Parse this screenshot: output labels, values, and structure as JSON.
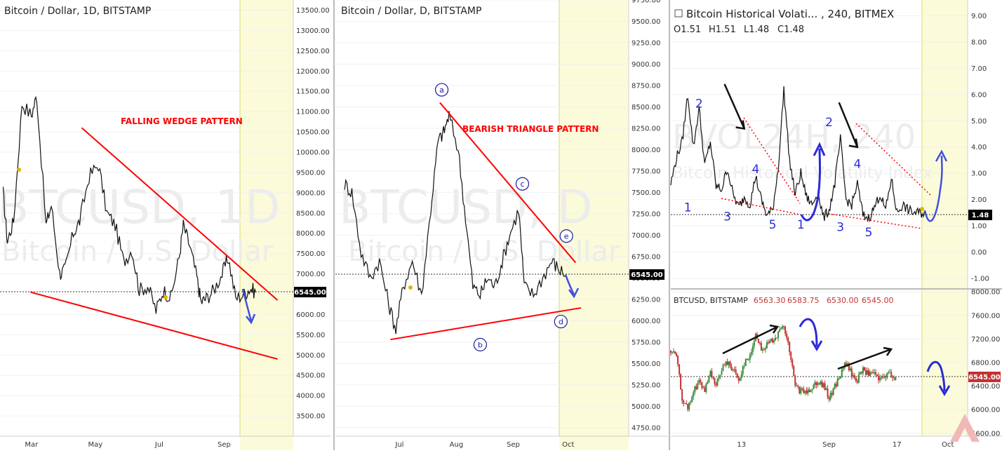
{
  "colors": {
    "accent_red": "#ff0000",
    "wave_blue": "#2b2bd6",
    "future_zone": "#fbfbd9",
    "bull_candle": "#3a8a3a",
    "bear_candle": "#c33232"
  },
  "chart_data": [
    {
      "type": "line",
      "title": "Bitcoin / Dollar, 1D, BITSTAMP",
      "watermark_main": "BTCUSD, 1D",
      "watermark_sub": "Bitcoin / U.S. Dollar",
      "pattern_label": "FALLING WEDGE PATTERN",
      "last_price_label": "6545.00",
      "x_tick_labels": [
        "Mar",
        "May",
        "Jul",
        "Sep"
      ],
      "y_tick_labels": [
        "13500.00",
        "13000.00",
        "12500.00",
        "12000.00",
        "11500.00",
        "11000.00",
        "10500.00",
        "10000.00",
        "9500.00",
        "9000.00",
        "8500.00",
        "8000.00",
        "7500.00",
        "7000.00",
        "6500.00",
        "6000.00",
        "5500.00",
        "5000.00",
        "4500.00",
        "4000.00",
        "3500.00"
      ],
      "ylim": [
        3000,
        13750
      ],
      "x": [
        "2018-02-02",
        "2018-02-06",
        "2018-02-12",
        "2018-02-20",
        "2018-03-01",
        "2018-03-06",
        "2018-03-15",
        "2018-03-20",
        "2018-03-28",
        "2018-04-02",
        "2018-04-10",
        "2018-04-16",
        "2018-04-25",
        "2018-05-04",
        "2018-05-12",
        "2018-05-20",
        "2018-05-28",
        "2018-06-05",
        "2018-06-12",
        "2018-06-20",
        "2018-06-28",
        "2018-07-05",
        "2018-07-12",
        "2018-07-20",
        "2018-07-24",
        "2018-07-30",
        "2018-08-06",
        "2018-08-10",
        "2018-08-15",
        "2018-08-22",
        "2018-08-30",
        "2018-09-05",
        "2018-09-12",
        "2018-09-20",
        "2018-09-26",
        "2018-10-01"
      ],
      "values": [
        9000,
        7800,
        8300,
        11200,
        10900,
        11400,
        8200,
        8700,
        7000,
        7100,
        8000,
        8300,
        9400,
        9700,
        8500,
        8200,
        7300,
        7600,
        6600,
        6700,
        6100,
        6600,
        6400,
        7400,
        8200,
        7700,
        6900,
        6300,
        6400,
        6600,
        7000,
        7400,
        6400,
        6500,
        6650,
        6545
      ],
      "trendlines": [
        {
          "name": "wedge-upper",
          "from": [
            "2018-04-18",
            10600
          ],
          "to": [
            "2018-10-22",
            6350
          ],
          "color": "#ff0000"
        },
        {
          "name": "wedge-lower",
          "from": [
            "2018-02-28",
            6550
          ],
          "to": [
            "2018-10-22",
            4900
          ],
          "color": "#ff0000"
        }
      ]
    },
    {
      "type": "line",
      "title": "Bitcoin / Dollar, D, BITSTAMP",
      "watermark_main": "BTCUSD, D",
      "watermark_sub": "Bitcoin / U.S. Dollar",
      "pattern_label": "BEARISH TRIANGLE PATTERN",
      "last_price_label": "6545.00",
      "x_tick_labels": [
        "Jul",
        "Aug",
        "Sep",
        "Oct"
      ],
      "y_tick_labels": [
        "9750.00",
        "9500.00",
        "9250.00",
        "9000.00",
        "8750.00",
        "8500.00",
        "8250.00",
        "8000.00",
        "7750.00",
        "7500.00",
        "7250.00",
        "7000.00",
        "6750.00",
        "6500.00",
        "6250.00",
        "6000.00",
        "5750.00",
        "5500.00",
        "5250.00",
        "5000.00",
        "4750.00"
      ],
      "ylim": [
        4650,
        9750
      ],
      "x": [
        "2018-06-01",
        "2018-06-05",
        "2018-06-10",
        "2018-06-15",
        "2018-06-20",
        "2018-06-25",
        "2018-06-29",
        "2018-07-03",
        "2018-07-08",
        "2018-07-13",
        "2018-07-18",
        "2018-07-22",
        "2018-07-25",
        "2018-07-28",
        "2018-08-02",
        "2018-08-06",
        "2018-08-10",
        "2018-08-14",
        "2018-08-18",
        "2018-08-22",
        "2018-08-26",
        "2018-08-30",
        "2018-09-04",
        "2018-09-07",
        "2018-09-12",
        "2018-09-17",
        "2018-09-22",
        "2018-09-26",
        "2018-09-30"
      ],
      "values": [
        7600,
        7500,
        6800,
        6500,
        6700,
        6200,
        5900,
        6400,
        6700,
        6300,
        7300,
        8100,
        8200,
        8400,
        8000,
        7200,
        6400,
        6300,
        6500,
        6400,
        6700,
        7000,
        7300,
        6400,
        6300,
        6500,
        6700,
        6600,
        6545
      ],
      "wave_labels": [
        {
          "text": "a",
          "at": [
            "2018-07-24",
            8700
          ]
        },
        {
          "text": "b",
          "at": [
            "2018-08-14",
            5720
          ]
        },
        {
          "text": "c",
          "at": [
            "2018-09-06",
            7600
          ]
        },
        {
          "text": "d",
          "at": [
            "2018-09-27",
            5990
          ]
        },
        {
          "text": "e",
          "at": [
            "2018-09-30",
            6990
          ]
        }
      ],
      "trendlines": [
        {
          "name": "triangle-upper",
          "from": [
            "2018-07-23",
            8550
          ],
          "to": [
            "2018-10-05",
            6680
          ],
          "color": "#ff0000"
        },
        {
          "name": "triangle-lower",
          "from": [
            "2018-06-26",
            5780
          ],
          "to": [
            "2018-10-08",
            6150
          ],
          "color": "#ff0000"
        }
      ]
    },
    {
      "type": "line",
      "title": "Bitcoin Historical Volati... , 240, BITMEX",
      "ohlc_labels": {
        "open": "O1.51",
        "high": "H1.51",
        "low": "L1.48",
        "close": "C1.48"
      },
      "watermark_main": "BVOL24H, 240",
      "watermark_sub": "Bitcoin Historical Volatility Index",
      "last_value_label": "1.48",
      "y_tick_labels": [
        "9.00",
        "8.00",
        "7.00",
        "6.00",
        "5.00",
        "4.00",
        "3.00",
        "2.00",
        "1.00",
        "0.00",
        "-1.00"
      ],
      "ylim": [
        -1.4,
        9.6
      ],
      "x": [
        0,
        4,
        8,
        12,
        16,
        20,
        24,
        28,
        32,
        36,
        40,
        44,
        48,
        52,
        56,
        60,
        64,
        68,
        72,
        76,
        80,
        84,
        88,
        92,
        96,
        100,
        104,
        108,
        112,
        116,
        120,
        124,
        128,
        132,
        136,
        140,
        144,
        148,
        152,
        156,
        160,
        164,
        168,
        172,
        176,
        180
      ],
      "values": [
        2.6,
        3.6,
        4.2,
        6.0,
        4.0,
        5.5,
        3.3,
        4.2,
        2.5,
        2.4,
        3.2,
        2.2,
        1.7,
        2.1,
        1.8,
        2.9,
        2.0,
        1.4,
        1.6,
        3.2,
        6.2,
        3.5,
        2.2,
        3.0,
        2.1,
        1.8,
        2.3,
        1.3,
        1.6,
        2.6,
        4.3,
        2.0,
        1.8,
        2.6,
        1.4,
        1.3,
        1.7,
        2.2,
        1.6,
        2.8,
        1.5,
        1.8,
        1.6,
        1.5,
        1.5,
        1.48
      ],
      "wave_labels": [
        {
          "text": "1",
          "at": [
            12,
            1.55
          ]
        },
        {
          "text": "2",
          "at": [
            20,
            5.5
          ]
        },
        {
          "text": "3",
          "at": [
            40,
            1.2
          ]
        },
        {
          "text": "4",
          "at": [
            60,
            3.0
          ]
        },
        {
          "text": "5",
          "at": [
            72,
            0.9
          ]
        },
        {
          "text": "1",
          "at": [
            92,
            0.9
          ]
        },
        {
          "text": "2",
          "at": [
            112,
            4.8
          ]
        },
        {
          "text": "3",
          "at": [
            120,
            0.8
          ]
        },
        {
          "text": "4",
          "at": [
            132,
            3.2
          ]
        },
        {
          "text": "5",
          "at": [
            140,
            0.6
          ]
        }
      ],
      "arrows": [
        {
          "name": "arrow-down-1",
          "from": [
            38,
            6.4
          ],
          "to": [
            52,
            4.7
          ],
          "color": "#111111"
        },
        {
          "name": "arrow-down-2",
          "from": [
            119,
            5.7
          ],
          "to": [
            132,
            4.0
          ],
          "color": "#111111"
        }
      ]
    },
    {
      "type": "line",
      "title": "BTCUSD, BITSTAMP",
      "ohlc_labels": {
        "open": "6563.30",
        "high": "6583.75",
        "low": "6530.00",
        "close": "6545.00"
      },
      "last_price_label": "6545.00",
      "x_tick_labels": [
        "13",
        "Sep",
        "17",
        "Oct"
      ],
      "y_tick_labels": [
        "8000.00",
        "7600.00",
        "7200.00",
        "6800.00",
        "6400.00",
        "6000.00",
        "5600.00"
      ],
      "ylim": [
        5550,
        8050
      ],
      "x": [
        0,
        4,
        8,
        12,
        16,
        20,
        24,
        28,
        32,
        36,
        40,
        44,
        48,
        52,
        56,
        60,
        64,
        68,
        72,
        76,
        80,
        84,
        88,
        92,
        96,
        100,
        104,
        108,
        112,
        116,
        120,
        124,
        128,
        132,
        136,
        140,
        144,
        148,
        152,
        156,
        160
      ],
      "values": [
        7000,
        6900,
        6200,
        6000,
        6300,
        6500,
        6300,
        6600,
        6400,
        6700,
        6800,
        6700,
        6500,
        6800,
        6900,
        7300,
        7000,
        7100,
        7200,
        7300,
        7400,
        7000,
        6400,
        6300,
        6300,
        6400,
        6500,
        6400,
        6200,
        6400,
        6600,
        6800,
        6600,
        6500,
        6700,
        6600,
        6600,
        6500,
        6600,
        6600,
        6545
      ]
    }
  ]
}
